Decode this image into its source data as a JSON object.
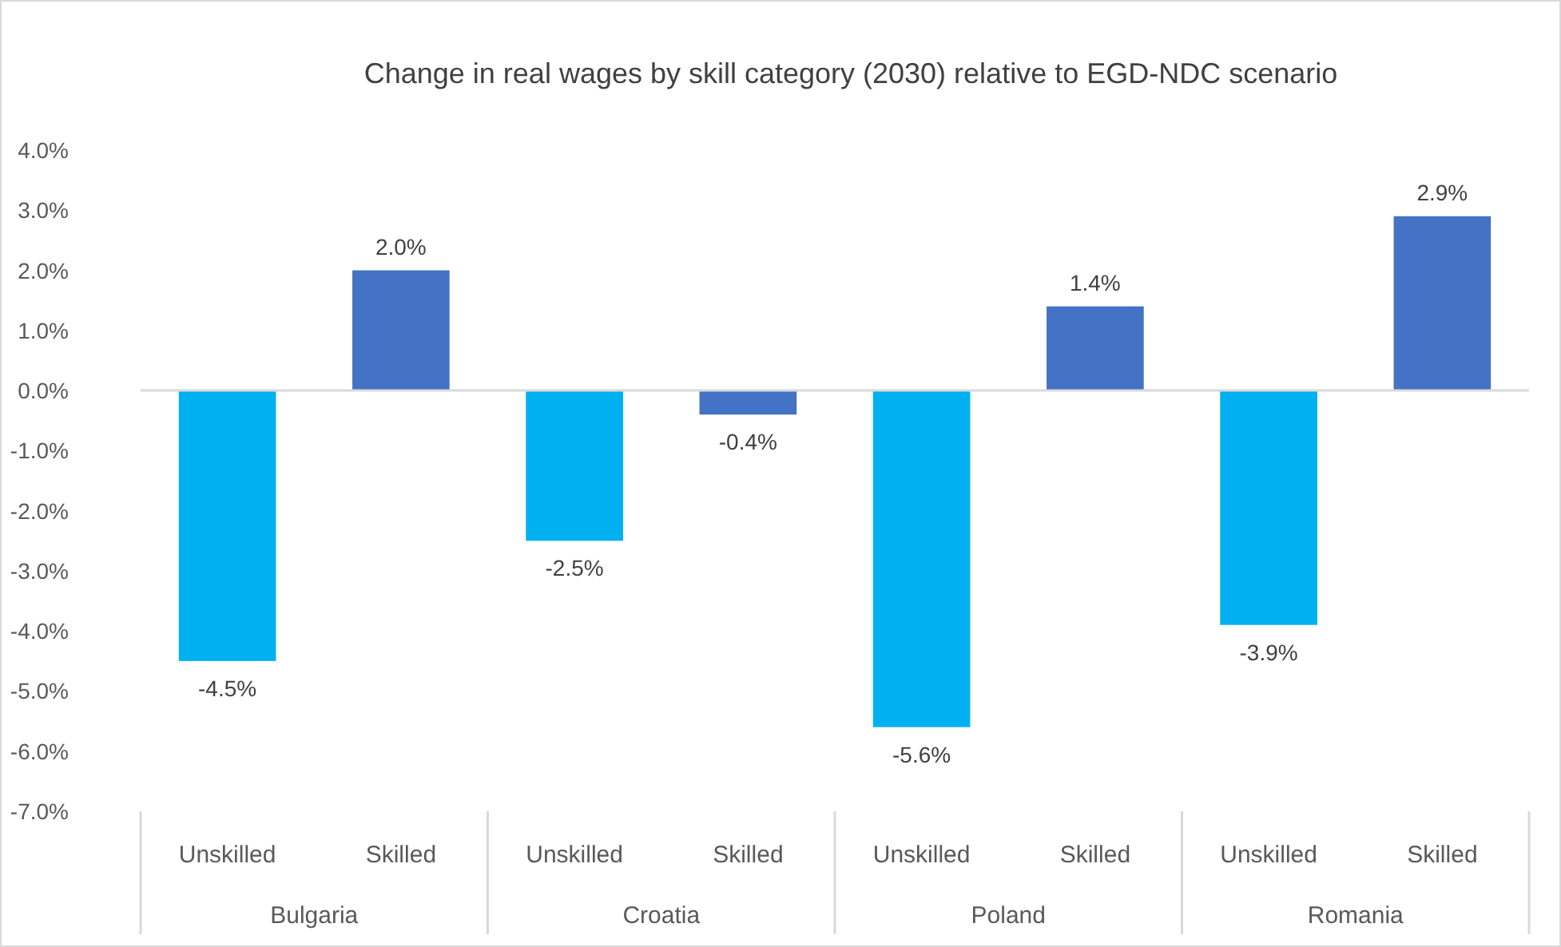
{
  "chart_data": {
    "type": "bar",
    "title": "Change in real wages by skill category (2030) relative to EGD-NDC scenario",
    "categories": [
      "Unskilled",
      "Skilled",
      "Unskilled",
      "Skilled",
      "Unskilled",
      "Skilled",
      "Unskilled",
      "Skilled"
    ],
    "values": [
      -4.5,
      2.0,
      -2.5,
      -0.4,
      -5.6,
      1.4,
      -3.9,
      2.9
    ],
    "colors": [
      "#00b0f0",
      "#4472c4",
      "#00b0f0",
      "#4472c4",
      "#00b0f0",
      "#4472c4",
      "#00b0f0",
      "#4472c4"
    ],
    "value_labels": [
      "-4.5%",
      "2.0%",
      "-2.5%",
      "-0.4%",
      "-5.6%",
      "1.4%",
      "-3.9%",
      "2.9%"
    ],
    "annotations": [
      "Bulgaria",
      "Croatia",
      "Poland",
      "Romania"
    ],
    "ylim": [
      -7,
      4
    ],
    "yticks": [
      {
        "value": 4,
        "label": "4.0%"
      },
      {
        "value": 3,
        "label": "3.0%"
      },
      {
        "value": 2,
        "label": "2.0%"
      },
      {
        "value": 1,
        "label": "1.0%"
      },
      {
        "value": 0,
        "label": "0.0%"
      },
      {
        "value": -1,
        "label": "-1.0%"
      },
      {
        "value": -2,
        "label": "-2.0%"
      },
      {
        "value": -3,
        "label": "-3.0%"
      },
      {
        "value": -4,
        "label": "-4.0%"
      },
      {
        "value": -5,
        "label": "-5.0%"
      },
      {
        "value": -6,
        "label": "-6.0%"
      },
      {
        "value": -7,
        "label": "-7.0%"
      }
    ]
  }
}
